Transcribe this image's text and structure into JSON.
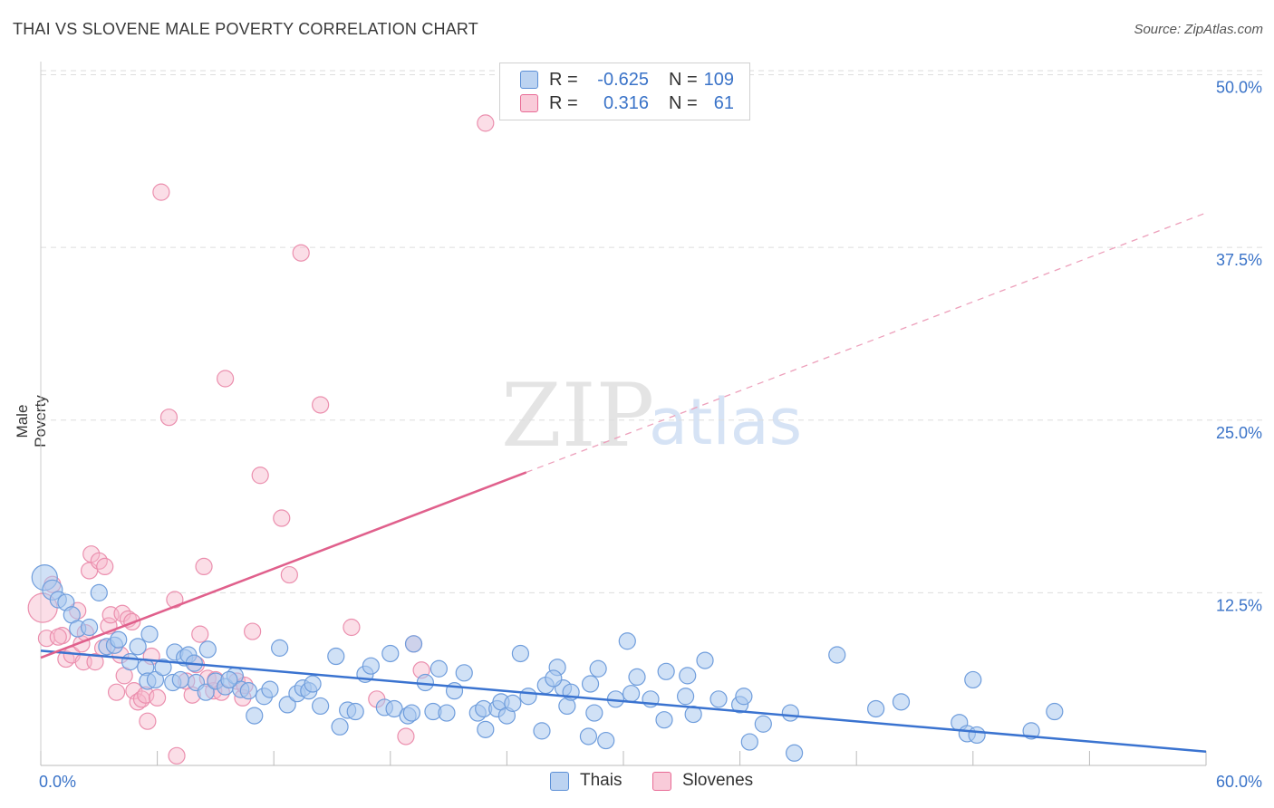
{
  "title": "THAI VS SLOVENE MALE POVERTY CORRELATION CHART",
  "source": "Source: ZipAtlas.com",
  "watermark": {
    "part1": "ZIP",
    "part2": "atlas"
  },
  "colors": {
    "blue": "#5b8fd6",
    "blue_fill": "#aac8ee",
    "pink": "#e86a95",
    "pink_fill": "#f6b6c9",
    "axis_text": "#3a73c8",
    "grid": "#dddddd"
  },
  "legend_top": {
    "rows": [
      {
        "r_label": "R =",
        "r_value": "-0.625",
        "n_label": "N =",
        "n_value": "109"
      },
      {
        "r_label": "R =",
        "r_value": "0.316",
        "n_label": "N =",
        "n_value": "61"
      }
    ]
  },
  "legend_bottom": [
    {
      "label": "Thais"
    },
    {
      "label": "Slovenes"
    }
  ],
  "chart_data": {
    "type": "scatter",
    "title": "THAI VS SLOVENE MALE POVERTY CORRELATION CHART",
    "xlabel": "",
    "ylabel": "Male Poverty",
    "xlim": [
      0,
      60
    ],
    "ylim": [
      0,
      52
    ],
    "x_tick_labels": [
      "0.0%",
      "60.0%"
    ],
    "y_ticks": [
      12.5,
      25.0,
      37.5,
      50.0
    ],
    "y_tick_labels": [
      "12.5%",
      "25.0%",
      "37.5%",
      "50.0%"
    ],
    "grid": true,
    "legend_position": "bottom",
    "series": [
      {
        "name": "Thais",
        "trend": {
          "x0": 0,
          "y0": 8.3,
          "x1": 60,
          "y1": 1.0,
          "solid_until": 60
        },
        "points": [
          [
            0.2,
            13.6
          ],
          [
            0.6,
            12.7
          ],
          [
            0.9,
            12.0
          ],
          [
            1.3,
            11.8
          ],
          [
            1.6,
            10.9
          ],
          [
            1.9,
            9.9
          ],
          [
            2.5,
            10.0
          ],
          [
            3.0,
            12.5
          ],
          [
            3.4,
            8.6
          ],
          [
            3.8,
            8.7
          ],
          [
            4.0,
            9.1
          ],
          [
            4.6,
            7.5
          ],
          [
            5.0,
            8.6
          ],
          [
            5.4,
            7.1
          ],
          [
            5.5,
            6.1
          ],
          [
            5.6,
            9.5
          ],
          [
            5.9,
            6.2
          ],
          [
            6.3,
            7.1
          ],
          [
            6.8,
            6.0
          ],
          [
            6.9,
            8.2
          ],
          [
            7.4,
            7.8
          ],
          [
            7.6,
            8.0
          ],
          [
            7.9,
            7.4
          ],
          [
            8.0,
            6.0
          ],
          [
            8.5,
            5.3
          ],
          [
            8.6,
            8.4
          ],
          [
            9.0,
            6.1
          ],
          [
            9.5,
            5.7
          ],
          [
            10.0,
            6.5
          ],
          [
            10.3,
            5.5
          ],
          [
            10.7,
            5.4
          ],
          [
            11.0,
            3.6
          ],
          [
            11.5,
            5.0
          ],
          [
            11.8,
            5.5
          ],
          [
            12.3,
            8.5
          ],
          [
            12.7,
            4.4
          ],
          [
            13.2,
            5.2
          ],
          [
            13.5,
            5.6
          ],
          [
            13.8,
            5.4
          ],
          [
            14.0,
            5.9
          ],
          [
            14.4,
            4.3
          ],
          [
            15.2,
            7.9
          ],
          [
            15.4,
            2.8
          ],
          [
            15.8,
            4.0
          ],
          [
            16.2,
            3.9
          ],
          [
            16.7,
            6.6
          ],
          [
            17.0,
            7.2
          ],
          [
            17.7,
            4.2
          ],
          [
            18.0,
            8.1
          ],
          [
            18.2,
            4.1
          ],
          [
            18.9,
            3.6
          ],
          [
            19.1,
            3.8
          ],
          [
            19.2,
            8.8
          ],
          [
            19.8,
            6.0
          ],
          [
            20.2,
            3.9
          ],
          [
            20.5,
            7.0
          ],
          [
            20.9,
            3.8
          ],
          [
            21.3,
            5.4
          ],
          [
            22.5,
            3.8
          ],
          [
            22.8,
            4.1
          ],
          [
            22.9,
            2.6
          ],
          [
            23.5,
            4.1
          ],
          [
            23.7,
            4.6
          ],
          [
            24.0,
            3.6
          ],
          [
            24.3,
            4.5
          ],
          [
            24.7,
            8.1
          ],
          [
            25.1,
            5.0
          ],
          [
            25.8,
            2.5
          ],
          [
            26.0,
            5.8
          ],
          [
            26.6,
            7.1
          ],
          [
            26.9,
            5.6
          ],
          [
            27.1,
            4.3
          ],
          [
            27.3,
            5.3
          ],
          [
            28.2,
            2.1
          ],
          [
            28.5,
            3.8
          ],
          [
            28.7,
            7.0
          ],
          [
            29.1,
            1.8
          ],
          [
            29.6,
            4.8
          ],
          [
            30.2,
            9.0
          ],
          [
            30.4,
            5.2
          ],
          [
            30.7,
            6.4
          ],
          [
            31.4,
            4.8
          ],
          [
            32.1,
            3.3
          ],
          [
            32.2,
            6.8
          ],
          [
            33.2,
            5.0
          ],
          [
            33.3,
            6.5
          ],
          [
            33.6,
            3.7
          ],
          [
            34.2,
            7.6
          ],
          [
            34.9,
            4.8
          ],
          [
            36.0,
            4.4
          ],
          [
            36.2,
            5.0
          ],
          [
            36.5,
            1.7
          ],
          [
            37.2,
            3.0
          ],
          [
            38.6,
            3.8
          ],
          [
            38.8,
            0.9
          ],
          [
            41.0,
            8.0
          ],
          [
            43.0,
            4.1
          ],
          [
            44.3,
            4.6
          ],
          [
            47.3,
            3.1
          ],
          [
            47.7,
            2.3
          ],
          [
            48.0,
            6.2
          ],
          [
            48.2,
            2.2
          ],
          [
            51.0,
            2.5
          ],
          [
            52.2,
            3.9
          ],
          [
            7.2,
            6.2
          ],
          [
            9.7,
            6.2
          ],
          [
            21.8,
            6.7
          ],
          [
            26.4,
            6.3
          ],
          [
            28.3,
            5.9
          ]
        ]
      },
      {
        "name": "Slovenes",
        "trend": {
          "x0": 0,
          "y0": 7.8,
          "x1": 60,
          "y1": 40.0,
          "solid_until": 25
        },
        "points": [
          [
            0.1,
            11.4
          ],
          [
            0.3,
            9.2
          ],
          [
            0.6,
            13.1
          ],
          [
            1.1,
            9.4
          ],
          [
            1.3,
            7.7
          ],
          [
            1.6,
            8.0
          ],
          [
            2.1,
            8.8
          ],
          [
            2.2,
            7.5
          ],
          [
            2.3,
            9.6
          ],
          [
            2.5,
            14.1
          ],
          [
            2.6,
            15.3
          ],
          [
            2.8,
            7.5
          ],
          [
            3.0,
            14.8
          ],
          [
            3.3,
            14.4
          ],
          [
            3.5,
            10.1
          ],
          [
            3.6,
            10.9
          ],
          [
            3.9,
            5.3
          ],
          [
            4.1,
            8.0
          ],
          [
            4.2,
            11.0
          ],
          [
            4.3,
            6.5
          ],
          [
            4.5,
            10.6
          ],
          [
            4.8,
            5.4
          ],
          [
            5.0,
            4.6
          ],
          [
            5.2,
            4.8
          ],
          [
            5.4,
            5.1
          ],
          [
            5.5,
            3.2
          ],
          [
            5.7,
            7.9
          ],
          [
            6.0,
            4.9
          ],
          [
            6.2,
            41.5
          ],
          [
            6.6,
            25.2
          ],
          [
            6.9,
            12.0
          ],
          [
            7.0,
            0.7
          ],
          [
            7.5,
            6.1
          ],
          [
            7.8,
            5.1
          ],
          [
            8.0,
            7.3
          ],
          [
            8.2,
            9.5
          ],
          [
            8.4,
            14.4
          ],
          [
            8.6,
            6.3
          ],
          [
            8.9,
            5.4
          ],
          [
            9.0,
            6.2
          ],
          [
            9.3,
            5.3
          ],
          [
            9.5,
            28.0
          ],
          [
            10.1,
            6.1
          ],
          [
            10.4,
            4.9
          ],
          [
            10.5,
            5.8
          ],
          [
            10.9,
            9.7
          ],
          [
            11.3,
            21.0
          ],
          [
            12.4,
            17.9
          ],
          [
            12.8,
            13.8
          ],
          [
            13.4,
            37.1
          ],
          [
            14.4,
            26.1
          ],
          [
            16.0,
            10.0
          ],
          [
            17.3,
            4.8
          ],
          [
            18.8,
            2.1
          ],
          [
            19.2,
            8.8
          ],
          [
            19.6,
            6.9
          ],
          [
            22.9,
            46.5
          ],
          [
            0.9,
            9.3
          ],
          [
            3.2,
            8.5
          ],
          [
            4.7,
            10.4
          ],
          [
            1.9,
            11.2
          ]
        ]
      }
    ]
  }
}
